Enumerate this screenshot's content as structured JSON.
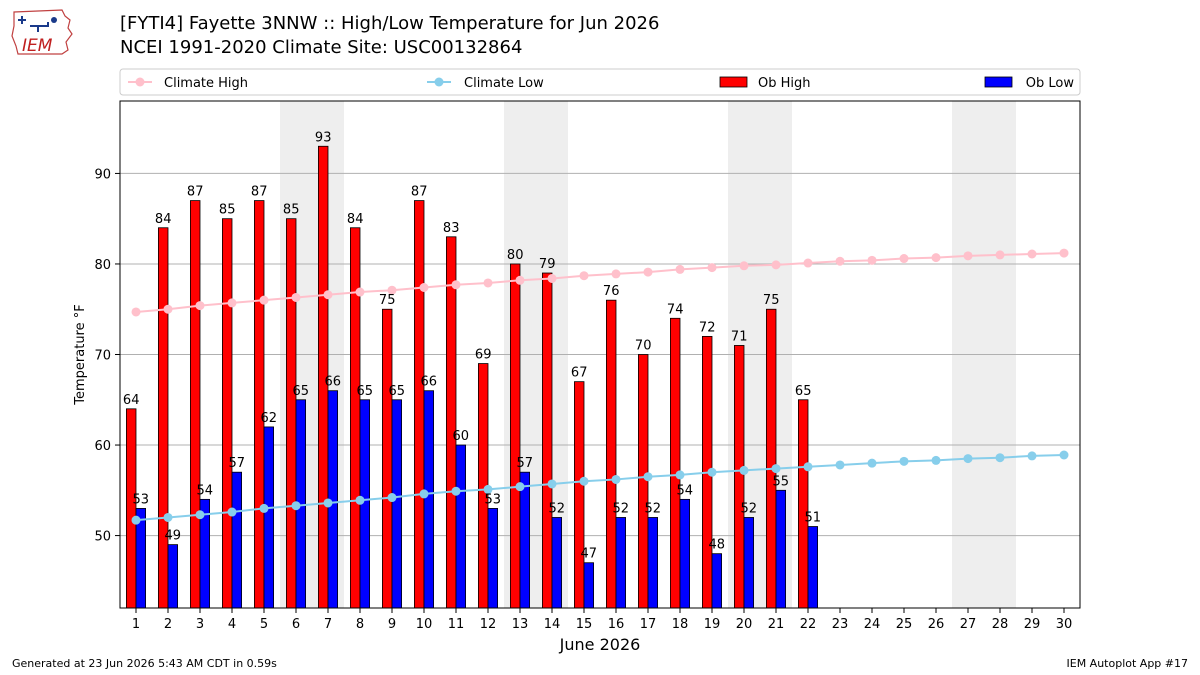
{
  "header": {
    "title_line1": "[FYTI4] Fayette 3NNW :: High/Low Temperature for Jun 2026",
    "title_line2": "NCEI 1991-2020 Climate Site: USC00132864"
  },
  "logo": {
    "text": "IEM",
    "icon": "iowa-state-outline-logo"
  },
  "footer": {
    "generated": "Generated at 23 Jun 2026 5:43 AM CDT in 0.59s",
    "app": "IEM Autoplot App #17"
  },
  "colors": {
    "ob_high": "#ff0000",
    "ob_low": "#0000ff",
    "climate_high": "#ffc0cb",
    "climate_low": "#87ceeb",
    "weekend_shade": "#eeeeee",
    "grid": "#b0b0b0"
  },
  "chart_data": {
    "type": "bar",
    "xlabel": "June 2026",
    "ylabel": "Temperature °F",
    "ylim": [
      42,
      98
    ],
    "yticks": [
      50,
      60,
      70,
      80,
      90
    ],
    "grid": "horizontal",
    "legend_placement": "top (above plot, single row)",
    "x": [
      1,
      2,
      3,
      4,
      5,
      6,
      7,
      8,
      9,
      10,
      11,
      12,
      13,
      14,
      15,
      16,
      17,
      18,
      19,
      20,
      21,
      22,
      23,
      24,
      25,
      26,
      27,
      28,
      29,
      30
    ],
    "shaded_days": [
      [
        6,
        7
      ],
      [
        13,
        14
      ],
      [
        20,
        21
      ],
      [
        27,
        28
      ]
    ],
    "series": [
      {
        "name": "Climate High",
        "kind": "line",
        "values": [
          74.7,
          75.0,
          75.4,
          75.7,
          76.0,
          76.3,
          76.6,
          76.9,
          77.1,
          77.4,
          77.7,
          77.9,
          78.2,
          78.4,
          78.7,
          78.9,
          79.1,
          79.4,
          79.6,
          79.8,
          79.9,
          80.1,
          80.3,
          80.4,
          80.6,
          80.7,
          80.9,
          81.0,
          81.1,
          81.2
        ]
      },
      {
        "name": "Climate Low",
        "kind": "line",
        "values": [
          51.7,
          52.0,
          52.3,
          52.6,
          53.0,
          53.3,
          53.6,
          53.9,
          54.2,
          54.6,
          54.9,
          55.1,
          55.4,
          55.7,
          56.0,
          56.2,
          56.5,
          56.7,
          57.0,
          57.2,
          57.4,
          57.6,
          57.8,
          58.0,
          58.2,
          58.3,
          58.5,
          58.6,
          58.8,
          58.9
        ]
      },
      {
        "name": "Ob High",
        "kind": "bar",
        "values": [
          64,
          84,
          87,
          85,
          87,
          85,
          93,
          84,
          75,
          87,
          83,
          69,
          80,
          79,
          67,
          76,
          70,
          74,
          72,
          71,
          75,
          65,
          null,
          null,
          null,
          null,
          null,
          null,
          null,
          null
        ]
      },
      {
        "name": "Ob Low",
        "kind": "bar",
        "values": [
          53,
          49,
          54,
          57,
          62,
          65,
          66,
          65,
          65,
          66,
          60,
          53,
          57,
          52,
          47,
          52,
          52,
          54,
          48,
          52,
          55,
          51,
          null,
          null,
          null,
          null,
          null,
          null,
          null,
          null
        ]
      }
    ]
  }
}
